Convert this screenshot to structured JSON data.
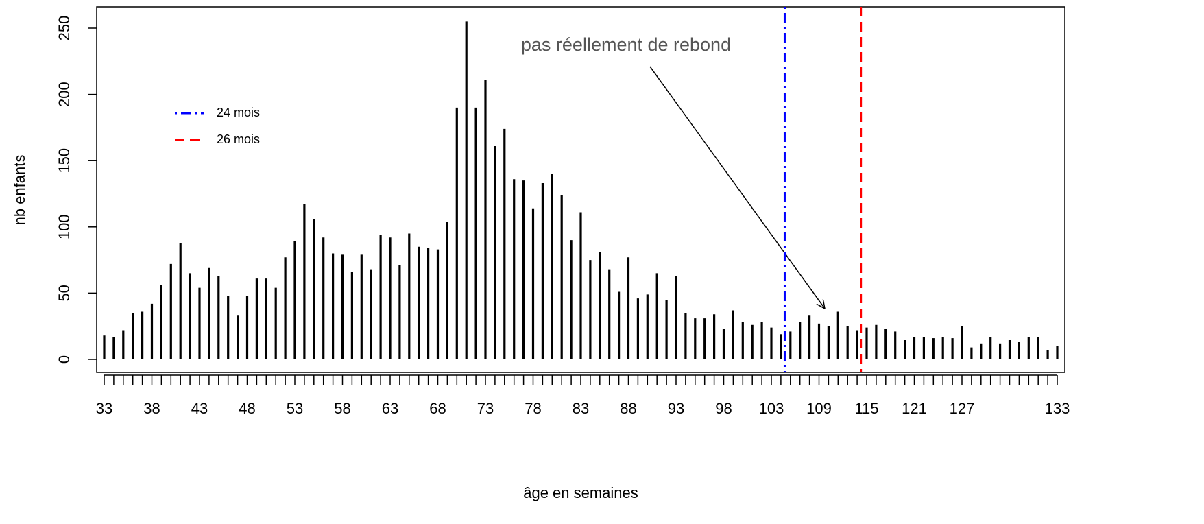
{
  "chart_data": {
    "type": "bar",
    "xlabel": "âge en semaines",
    "ylabel": "nb enfants",
    "annotation": "pas réellement de rebond",
    "categories": [
      "33",
      null,
      null,
      null,
      null,
      "38",
      null,
      null,
      null,
      null,
      "43",
      null,
      null,
      null,
      null,
      "48",
      null,
      null,
      null,
      null,
      "53",
      null,
      null,
      null,
      null,
      "58",
      null,
      null,
      null,
      null,
      "63",
      null,
      null,
      null,
      null,
      "68",
      null,
      null,
      null,
      null,
      "73",
      null,
      null,
      null,
      null,
      "78",
      null,
      null,
      null,
      null,
      "83",
      null,
      null,
      null,
      null,
      "88",
      null,
      null,
      null,
      null,
      "93",
      null,
      null,
      null,
      null,
      "98",
      null,
      null,
      null,
      null,
      "103",
      null,
      null,
      null,
      null,
      "109",
      null,
      null,
      null,
      null,
      "115",
      null,
      null,
      null,
      null,
      "121",
      null,
      null,
      null,
      null,
      "127",
      null,
      null,
      null,
      null,
      null,
      null,
      null,
      null,
      null,
      "133"
    ],
    "values": [
      18,
      17,
      22,
      35,
      36,
      42,
      56,
      72,
      88,
      65,
      54,
      69,
      63,
      48,
      33,
      48,
      61,
      61,
      54,
      77,
      89,
      117,
      106,
      92,
      80,
      79,
      66,
      79,
      68,
      94,
      92,
      71,
      95,
      85,
      84,
      83,
      104,
      190,
      255,
      190,
      211,
      161,
      174,
      136,
      135,
      114,
      133,
      140,
      124,
      90,
      111,
      75,
      81,
      68,
      51,
      77,
      46,
      49,
      65,
      45,
      63,
      35,
      31,
      31,
      34,
      23,
      37,
      28,
      26,
      28,
      24,
      19,
      21,
      28,
      33,
      27,
      25,
      36,
      25,
      22,
      24,
      26,
      23,
      21,
      15,
      17,
      17,
      16,
      17,
      16,
      25,
      9,
      12,
      17,
      12,
      15,
      13,
      17,
      17,
      7,
      10
    ],
    "color": "#000000",
    "ylim": [
      0,
      250
    ],
    "yticks": [
      0,
      50,
      100,
      150,
      200,
      250
    ],
    "vlines": [
      {
        "name": "24 mois",
        "x": 71.4,
        "color": "#0000ff",
        "style": "dotdash"
      },
      {
        "name": "26 mois",
        "x": 79.4,
        "color": "#ff0000",
        "style": "dashed"
      }
    ]
  }
}
